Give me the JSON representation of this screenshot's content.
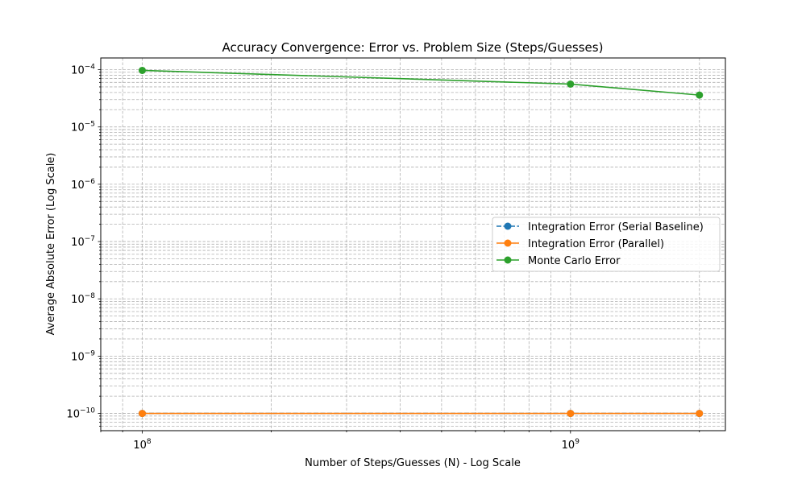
{
  "chart_data": {
    "type": "line",
    "title": "Accuracy Convergence: Error vs. Problem Size (Steps/Guesses)",
    "xlabel": "Number of Steps/Guesses (N) - Log Scale",
    "ylabel": "Average Absolute Error (Log Scale)",
    "x_scale": "log",
    "y_scale": "log",
    "xlim": [
      80000000,
      2300000000
    ],
    "ylim": [
      5e-11,
      0.00016
    ],
    "x_ticks": [
      {
        "value": 100000000,
        "base": "10",
        "exp": "8"
      },
      {
        "value": 1000000000,
        "base": "10",
        "exp": "9"
      }
    ],
    "y_ticks": [
      {
        "value": 1e-10,
        "base": "10",
        "exp": "−10"
      },
      {
        "value": 1e-09,
        "base": "10",
        "exp": "−9"
      },
      {
        "value": 1e-08,
        "base": "10",
        "exp": "−8"
      },
      {
        "value": 1e-07,
        "base": "10",
        "exp": "−7"
      },
      {
        "value": 1e-06,
        "base": "10",
        "exp": "−6"
      },
      {
        "value": 1e-05,
        "base": "10",
        "exp": "−5"
      },
      {
        "value": 0.0001,
        "base": "10",
        "exp": "−4"
      }
    ],
    "grid": true,
    "legend_position": "center-right",
    "x": [
      100000000,
      1000000000,
      2000000000
    ],
    "series": [
      {
        "name": "Integration Error (Serial Baseline)",
        "values": [
          1e-10,
          1e-10,
          1e-10
        ],
        "color": "#1f77b4",
        "linestyle": "dashed",
        "marker": "circle"
      },
      {
        "name": "Integration Error (Parallel)",
        "values": [
          1e-10,
          1e-10,
          1e-10
        ],
        "color": "#ff7f0e",
        "linestyle": "solid",
        "marker": "circle"
      },
      {
        "name": "Monte Carlo Error",
        "values": [
          9.7e-05,
          5.6e-05,
          3.6e-05
        ],
        "color": "#2ca02c",
        "linestyle": "solid",
        "marker": "circle"
      }
    ]
  }
}
